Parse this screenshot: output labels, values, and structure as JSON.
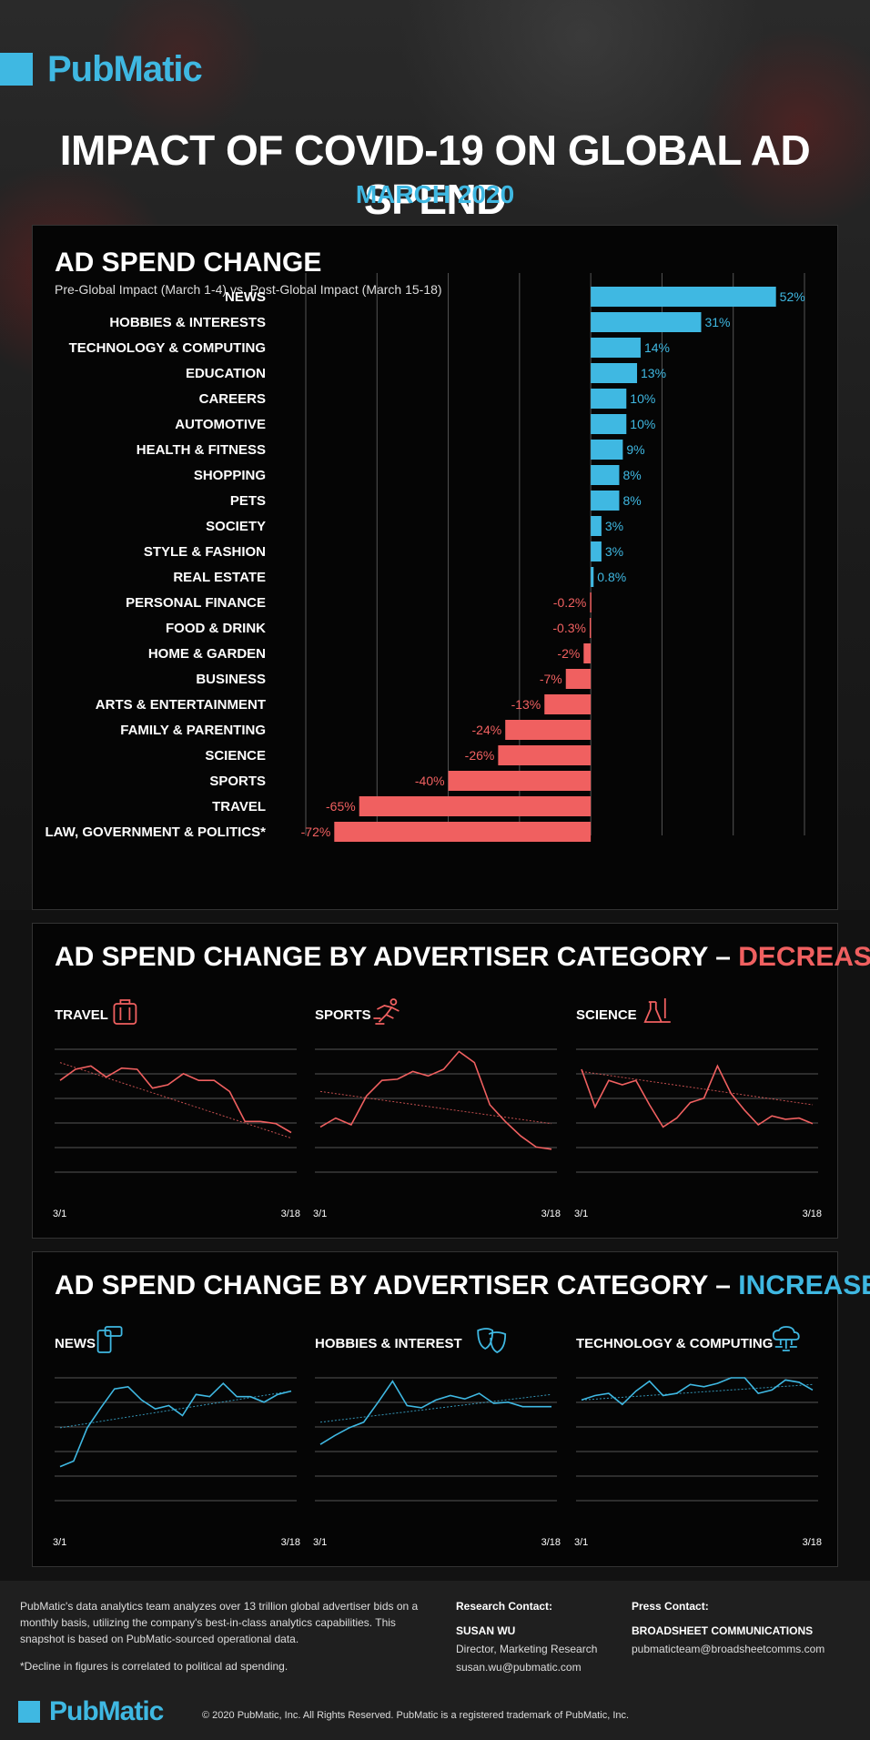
{
  "brand": {
    "name": "PubMatic",
    "accent": "#3fb8e2",
    "negative": "#f06060"
  },
  "header": {
    "title": "IMPACT OF COVID-19 ON GLOBAL AD SPEND",
    "subtitle": "MARCH 2020"
  },
  "chart_data": [
    {
      "type": "bar",
      "orientation": "horizontal",
      "title": "AD SPEND CHANGE",
      "subtitle": "Pre-Global Impact (March 1-4) vs. Post-Global Impact (March 15-18)",
      "categories": [
        "NEWS",
        "HOBBIES & INTERESTS",
        "TECHNOLOGY & COMPUTING",
        "EDUCATION",
        "CAREERS",
        "AUTOMOTIVE",
        "HEALTH & FITNESS",
        "SHOPPING",
        "PETS",
        "SOCIETY",
        "STYLE & FASHION",
        "REAL ESTATE",
        "PERSONAL FINANCE",
        "FOOD & DRINK",
        "HOME & GARDEN",
        "BUSINESS",
        "ARTS & ENTERTAINMENT",
        "FAMILY & PARENTING",
        "SCIENCE",
        "SPORTS",
        "TRAVEL",
        "LAW, GOVERNMENT & POLITICS*"
      ],
      "values": [
        52,
        31,
        14,
        13,
        10,
        10,
        9,
        8,
        8,
        3,
        3,
        0.8,
        -0.2,
        -0.3,
        -2,
        -7,
        -13,
        -24,
        -26,
        -40,
        -65,
        -72
      ],
      "labels": [
        "52%",
        "31%",
        "14%",
        "13%",
        "10%",
        "10%",
        "9%",
        "8%",
        "8%",
        "3%",
        "3%",
        "0.8%",
        "-0.2%",
        "-0.3%",
        "-2%",
        "-7%",
        "-13%",
        "-24%",
        "-26%",
        "-40%",
        "-65%",
        "-72%"
      ],
      "xlim": [
        -80,
        60
      ],
      "gridlines": [
        -80,
        -60,
        -40,
        -20,
        0,
        20,
        40,
        60
      ],
      "positive_color": "#3fb8e2",
      "negative_color": "#f06060"
    },
    {
      "type": "line",
      "group_title_prefix": "AD SPEND CHANGE BY ADVERTISER CATEGORY – ",
      "group_title_highlight": "DECREASES",
      "color": "#f06060",
      "x_labels": [
        "3/1",
        "3/18"
      ],
      "ylim": [
        0,
        100
      ],
      "charts": [
        {
          "name": "TRAVEL",
          "icon": "luggage-icon",
          "values": [
            72,
            82,
            85,
            75,
            83,
            82,
            65,
            68,
            78,
            72,
            72,
            62,
            35,
            35,
            33,
            25
          ],
          "trend": [
            88,
            20
          ]
        },
        {
          "name": "SPORTS",
          "icon": "runner-icon",
          "values": [
            30,
            38,
            32,
            58,
            72,
            73,
            80,
            76,
            82,
            98,
            88,
            50,
            35,
            22,
            12,
            10
          ],
          "trend": [
            62,
            33
          ]
        },
        {
          "name": "SCIENCE",
          "icon": "lab-flask-icon",
          "values": [
            82,
            48,
            72,
            68,
            72,
            50,
            30,
            38,
            52,
            56,
            85,
            60,
            45,
            32,
            40,
            37,
            38,
            33
          ],
          "trend": [
            80,
            50
          ]
        }
      ]
    },
    {
      "type": "line",
      "group_title_prefix": "AD SPEND CHANGE BY ADVERTISER CATEGORY – ",
      "group_title_highlight": "INCREASES",
      "color": "#3fb8e2",
      "x_labels": [
        "3/1",
        "3/18"
      ],
      "ylim": [
        0,
        100
      ],
      "charts": [
        {
          "name": "NEWS",
          "icon": "smartphone-news-icon",
          "values": [
            20,
            25,
            55,
            73,
            90,
            92,
            80,
            72,
            75,
            66,
            85,
            83,
            95,
            83,
            83,
            78,
            85,
            88
          ],
          "trend": [
            55,
            88
          ]
        },
        {
          "name": "HOBBIES & INTEREST",
          "icon": "theater-masks-icon",
          "values": [
            40,
            48,
            55,
            60,
            78,
            97,
            75,
            73,
            80,
            84,
            81,
            86,
            77,
            78,
            74,
            74,
            74
          ],
          "trend": [
            60,
            85
          ]
        },
        {
          "name": "TECHNOLOGY & COMPUTING",
          "icon": "cloud-computing-icon",
          "values": [
            80,
            84,
            86,
            76,
            88,
            97,
            84,
            86,
            94,
            92,
            95,
            100,
            100,
            86,
            89,
            98,
            96,
            89
          ],
          "trend": [
            80,
            94
          ]
        }
      ]
    }
  ],
  "footer": {
    "about": "PubMatic's data analytics team analyzes over 13 trillion global advertiser bids on a monthly basis, utilizing the company's best-in-class analytics capabilities. This snapshot is based on PubMatic-sourced operational data.",
    "footnote": "*Decline in figures is correlated to political ad spending.",
    "research": {
      "heading": "Research Contact:",
      "name": "SUSAN WU",
      "role": "Director, Marketing Research",
      "email": "susan.wu@pubmatic.com"
    },
    "press": {
      "heading": "Press Contact:",
      "name": "BROADSHEET COMMUNICATIONS",
      "email": "pubmaticteam@broadsheetcomms.com"
    },
    "copyright": "© 2020 PubMatic, Inc. All Rights Reserved. PubMatic is a registered trademark of PubMatic, Inc."
  }
}
